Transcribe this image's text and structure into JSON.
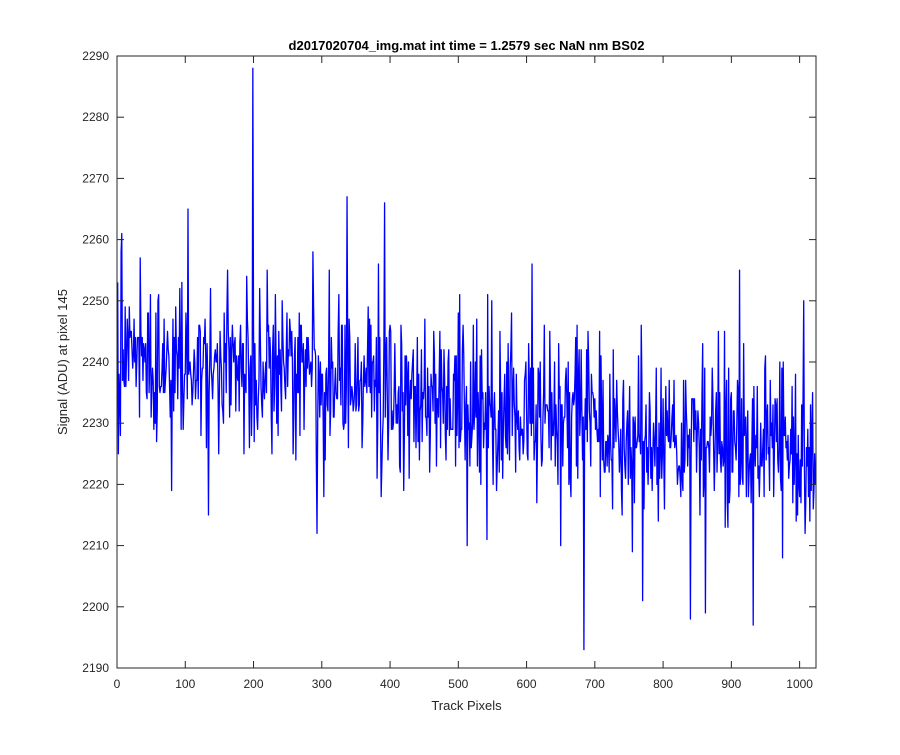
{
  "chart_data": {
    "type": "line",
    "title": "d2017020704_img.mat int time = 1.2579 sec  NaN nm BS02",
    "xlabel": "Track Pixels",
    "ylabel": "Signal (ADU) at pixel 145",
    "xlim": [
      0,
      1024
    ],
    "ylim": [
      2190,
      2290
    ],
    "xticks": [
      0,
      100,
      200,
      300,
      400,
      500,
      600,
      700,
      800,
      900,
      1000
    ],
    "yticks": [
      2190,
      2200,
      2210,
      2220,
      2230,
      2240,
      2250,
      2260,
      2270,
      2280,
      2290
    ],
    "grid": false,
    "legend": "none",
    "series": [
      {
        "color": "#0000ff",
        "x_start": 1,
        "x_step": 1,
        "trend_start": 2242,
        "trend_end": 2225,
        "noise_amplitude": 8,
        "peaks": [
          {
            "x": 2,
            "y": 2225
          },
          {
            "x": 7,
            "y": 2261
          },
          {
            "x": 80,
            "y": 2219
          },
          {
            "x": 104,
            "y": 2265
          },
          {
            "x": 134,
            "y": 2215
          },
          {
            "x": 199,
            "y": 2288
          },
          {
            "x": 292,
            "y": 2224
          },
          {
            "x": 293,
            "y": 2212
          },
          {
            "x": 337,
            "y": 2267
          },
          {
            "x": 392,
            "y": 2266
          },
          {
            "x": 513,
            "y": 2210
          },
          {
            "x": 608,
            "y": 2256
          },
          {
            "x": 650,
            "y": 2210
          },
          {
            "x": 684,
            "y": 2193
          },
          {
            "x": 770,
            "y": 2201
          },
          {
            "x": 840,
            "y": 2198
          },
          {
            "x": 862,
            "y": 2199
          },
          {
            "x": 912,
            "y": 2255
          },
          {
            "x": 932,
            "y": 2197
          },
          {
            "x": 1006,
            "y": 2250
          },
          {
            "x": 1021,
            "y": 2219
          }
        ]
      }
    ]
  }
}
